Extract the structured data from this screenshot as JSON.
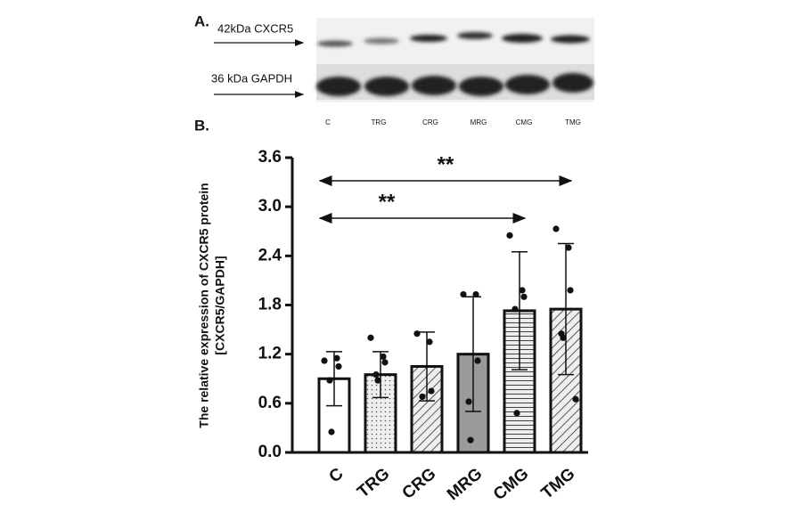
{
  "blot": {
    "panel": "A.",
    "labels": [
      "42kDa CXCR5",
      "36 kDa GAPDH"
    ],
    "lanes": [
      "C",
      "TRG",
      "CRG",
      "MRG",
      "CMG",
      "TMG"
    ]
  },
  "chart_data": {
    "type": "bar",
    "panel": "B.",
    "ylabel": [
      "The relative expression of CXCR5 protein",
      "[CXCR5/GAPDH]"
    ],
    "categories": [
      "C",
      "TRG",
      "CRG",
      "MRG",
      "CMG",
      "TMG"
    ],
    "values": [
      0.9,
      0.95,
      1.05,
      1.2,
      1.73,
      1.75
    ],
    "errors": [
      0.33,
      0.28,
      0.42,
      0.7,
      0.72,
      0.8
    ],
    "points": [
      [
        1.12,
        1.15,
        1.05,
        0.88,
        0.25
      ],
      [
        1.4,
        1.17,
        1.1,
        0.95,
        0.88
      ],
      [
        1.45,
        1.35,
        0.75,
        0.68
      ],
      [
        1.93,
        1.93,
        1.12,
        0.62,
        0.15
      ],
      [
        2.65,
        1.98,
        1.9,
        1.75,
        0.48
      ],
      [
        2.73,
        2.5,
        1.98,
        1.45,
        1.4,
        0.65
      ]
    ],
    "fills": [
      "white",
      "dots",
      "diag",
      "solid",
      "hlines",
      "diag"
    ],
    "colors": [
      "#ffffff",
      "#e6e6e6",
      "#e6e6e6",
      "#9a9a9a",
      "#e6e6e6",
      "#d8d8d8"
    ],
    "ylim": [
      0,
      3.6
    ],
    "yticks": [
      {
        "value": 0,
        "label": "0.0"
      },
      0.6,
      1.2,
      1.8,
      2.4,
      {
        "value": 3,
        "label": "3.0"
      },
      3.6
    ],
    "annotations": [
      {
        "text": "**",
        "from": "C",
        "to": "TMG"
      },
      {
        "text": "**",
        "from": "C",
        "to": "CMG"
      }
    ]
  }
}
